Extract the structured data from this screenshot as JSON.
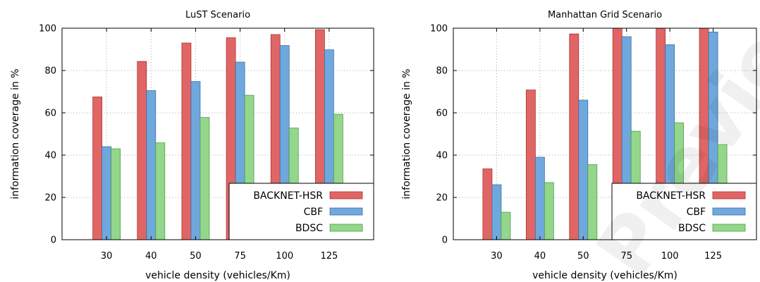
{
  "colors": {
    "series": [
      "#e06666",
      "#6fa8dc",
      "#93d68c"
    ],
    "series_stroke": [
      "#b03030",
      "#3d6fa8",
      "#4e9e46"
    ]
  },
  "watermark": "Preview",
  "chart_data": [
    {
      "type": "bar",
      "title": "LuST Scenario",
      "xlabel": "vehicle density (vehicles/Km)",
      "ylabel": "information coverage in %",
      "categories": [
        "30",
        "40",
        "50",
        "75",
        "100",
        "125"
      ],
      "ylim": [
        0,
        100
      ],
      "yticks": [
        0,
        20,
        40,
        60,
        80,
        100
      ],
      "grid": true,
      "legend_position": "bottom-right",
      "series": [
        {
          "name": "BACKNET-HSR",
          "values": [
            67.5,
            84.3,
            93.0,
            95.5,
            97.0,
            99.3
          ]
        },
        {
          "name": "CBF",
          "values": [
            44.0,
            70.5,
            74.8,
            84.0,
            91.8,
            89.8
          ]
        },
        {
          "name": "BDSC",
          "values": [
            43.0,
            45.8,
            57.8,
            68.3,
            52.8,
            59.3
          ]
        }
      ]
    },
    {
      "type": "bar",
      "title": "Manhattan Grid Scenario",
      "xlabel": "vehicle density (vehicles/Km)",
      "ylabel": "information coverage in %",
      "categories": [
        "30",
        "40",
        "50",
        "75",
        "100",
        "125"
      ],
      "ylim": [
        0,
        100
      ],
      "yticks": [
        0,
        20,
        40,
        60,
        80,
        100
      ],
      "grid": true,
      "legend_position": "bottom-right",
      "series": [
        {
          "name": "BACKNET-HSR",
          "values": [
            33.5,
            70.8,
            97.3,
            100,
            100,
            100
          ]
        },
        {
          "name": "CBF",
          "values": [
            26.0,
            39.0,
            66.0,
            96.0,
            92.2,
            98.2
          ]
        },
        {
          "name": "BDSC",
          "values": [
            13.0,
            27.0,
            35.5,
            51.3,
            55.3,
            45.0
          ]
        }
      ]
    }
  ]
}
